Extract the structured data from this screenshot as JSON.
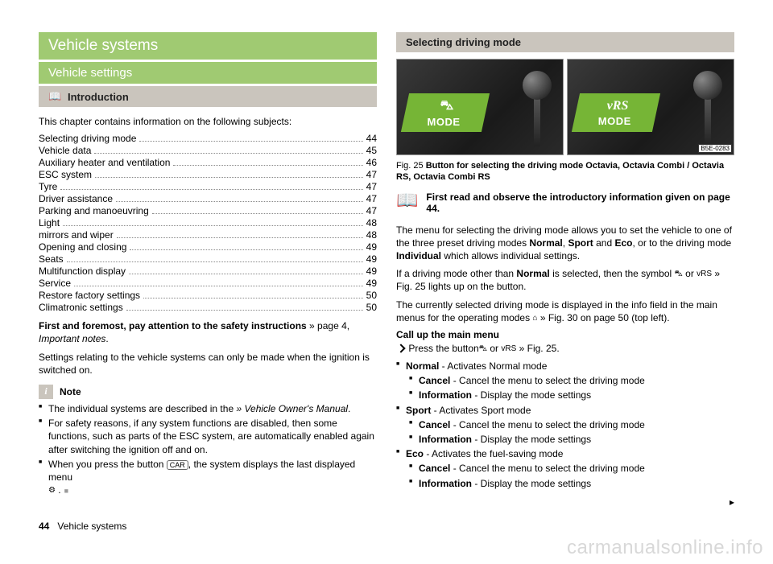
{
  "left": {
    "h1": "Vehicle systems",
    "h2": "Vehicle settings",
    "h3": "Introduction",
    "intro": "This chapter contains information on the following subjects:",
    "toc": [
      {
        "t": "Selecting driving mode",
        "p": "44"
      },
      {
        "t": "Vehicle data",
        "p": "45"
      },
      {
        "t": "Auxiliary heater and ventilation",
        "p": "46"
      },
      {
        "t": "ESC system",
        "p": "47"
      },
      {
        "t": "Tyre",
        "p": "47"
      },
      {
        "t": "Driver assistance",
        "p": "47"
      },
      {
        "t": "Parking and manoeuvring",
        "p": "47"
      },
      {
        "t": "Light",
        "p": "48"
      },
      {
        "t": "mirrors and wiper",
        "p": "48"
      },
      {
        "t": "Opening and closing",
        "p": "49"
      },
      {
        "t": "Seats",
        "p": "49"
      },
      {
        "t": "Multifunction display",
        "p": "49"
      },
      {
        "t": "Service",
        "p": "49"
      },
      {
        "t": "Restore factory settings",
        "p": "50"
      },
      {
        "t": "Climatronic settings",
        "p": "50"
      }
    ],
    "first_bold": "First and foremost, pay attention to the safety instructions",
    "first_link": " » page 4, ",
    "first_italic": "Important notes",
    "settings_line": "Settings relating to the vehicle systems can only be made when the ignition is switched on.",
    "note_label": "Note",
    "note_items": [
      {
        "pre": "The individual systems are described in the ",
        "link": "» Vehicle Owner's Manual",
        "post": "."
      },
      {
        "pre": "For safety reasons, if any system functions are disabled, then some functions, such as parts of the ESC system, are automatically enabled again after switching the ignition off and on.",
        "link": "",
        "post": ""
      }
    ],
    "note_last_pre": "When you press the button ",
    "note_last_btn": "CAR",
    "note_last_post": ", the system displays the last displayed menu ",
    "note_last_sym": "⚙"
  },
  "right": {
    "h3": "Selecting driving mode",
    "mode_left_icon": "⛍",
    "mode_text": "MODE",
    "mode_right_icon": "vRS",
    "fig_ref": "B5E-0283",
    "fig_cap_pre": "Fig. 25   ",
    "fig_cap_bold": "Button for selecting the driving mode Octavia, Octavia Combi / Octavia RS, Octavia Combi RS",
    "read_first": "First read and observe the introductory information given on page 44.",
    "para1_a": "The menu for selecting the driving mode allows you to set the vehicle to one of the three preset driving modes ",
    "para1_b": "Normal",
    "para1_c": ", ",
    "para1_d": "Sport",
    "para1_e": " and ",
    "para1_f": "Eco",
    "para1_g": ", or to the driving mode ",
    "para1_h": "Individual",
    "para1_i": " which allows individual settings.",
    "para2_a": "If a driving mode other than ",
    "para2_b": "Normal",
    "para2_c": " is selected, then the symbol ",
    "para2_d": " or ",
    "para2_e": " » Fig. 25",
    "para2_f": " lights up on the button.",
    "para3_a": "The currently selected driving mode is displayed in the info field in the main menus for the operating modes ",
    "para3_b": " » Fig. 30",
    "para3_c": " on page 50 (top left).",
    "callup": "Call up the main menu",
    "callup_line_a": "Press the button",
    "callup_line_b": " or ",
    "callup_line_c": " » Fig. 25.",
    "menu": [
      {
        "label": "Normal",
        "desc": " - Activates Normal mode",
        "sub": [
          {
            "label": "Cancel",
            "desc": " - Cancel the menu to select the driving mode"
          },
          {
            "label": "Information",
            "desc": " - Display the mode settings"
          }
        ]
      },
      {
        "label": "Sport",
        "desc": " - Activates Sport mode",
        "sub": [
          {
            "label": "Cancel",
            "desc": " - Cancel the menu to select the driving mode"
          },
          {
            "label": "Information",
            "desc": " - Display the mode settings"
          }
        ]
      },
      {
        "label": "Eco",
        "desc": " - Activates the fuel-saving mode",
        "sub": [
          {
            "label": "Cancel",
            "desc": " - Cancel the menu to select the driving mode"
          },
          {
            "label": "Information",
            "desc": " - Display the mode settings"
          }
        ]
      }
    ]
  },
  "footer": {
    "page": "44",
    "section": "Vehicle systems"
  },
  "watermark": "carmanualsonline.info"
}
